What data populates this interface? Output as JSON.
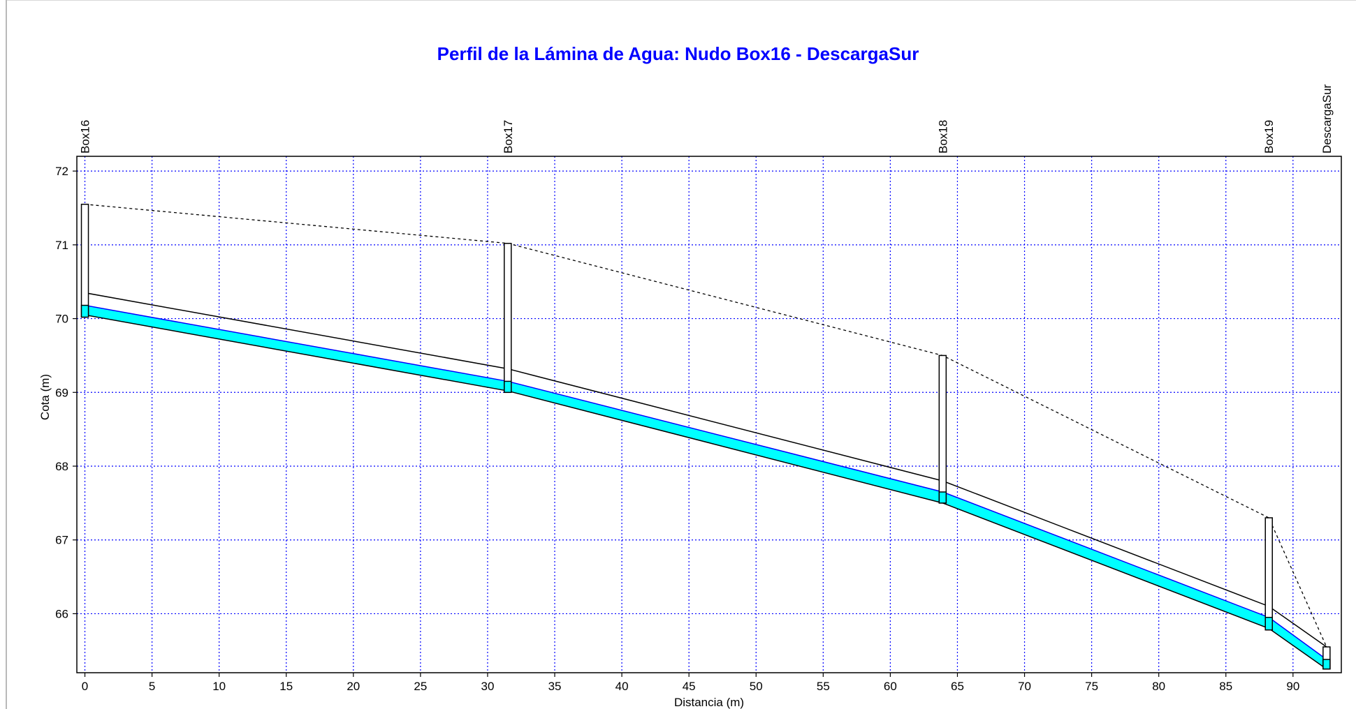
{
  "chart_data": {
    "type": "line",
    "title": "Perfil de la Lámina de Agua:  Nudo Box16 - DescargaSur",
    "xlabel": "Distancia (m)",
    "ylabel": "Cota (m)",
    "xlim": [
      -0.6,
      93.6
    ],
    "ylim": [
      65.2,
      72.2
    ],
    "xticks": [
      "0",
      "5",
      "10",
      "15",
      "20",
      "25",
      "30",
      "35",
      "40",
      "45",
      "50",
      "55",
      "60",
      "65",
      "70",
      "75",
      "80",
      "85",
      "90"
    ],
    "yticks": [
      "72",
      "71",
      "70",
      "69",
      "68",
      "67",
      "66"
    ],
    "grid": true,
    "nodes": [
      {
        "name": "Box16",
        "x": 0.0,
        "invert": 70.02,
        "rim": 71.55
      },
      {
        "name": "Box17",
        "x": 31.5,
        "invert": 69.0,
        "rim": 71.02
      },
      {
        "name": "Box18",
        "x": 63.9,
        "invert": 67.5,
        "rim": 69.5
      },
      {
        "name": "Box19",
        "x": 88.2,
        "invert": 65.78,
        "rim": 67.3
      },
      {
        "name": "DescargaSur",
        "x": 92.5,
        "invert": 65.25,
        "rim": 65.55
      }
    ],
    "series": [
      {
        "name": "",
        "values": [
          {
            "x": 0.0,
            "y": 70.05
          },
          {
            "x": 31.5,
            "y": 69.02
          },
          {
            "x": 63.9,
            "y": 67.5
          },
          {
            "x": 88.2,
            "y": 65.8
          },
          {
            "x": 92.5,
            "y": 65.25
          }
        ]
      },
      {
        "name": "",
        "values": [
          {
            "x": 0.0,
            "y": 70.18
          },
          {
            "x": 31.5,
            "y": 69.15
          },
          {
            "x": 63.9,
            "y": 67.65
          },
          {
            "x": 88.2,
            "y": 65.95
          },
          {
            "x": 92.5,
            "y": 65.38
          }
        ]
      },
      {
        "name": "",
        "values": [
          {
            "x": 0.0,
            "y": 70.35
          },
          {
            "x": 31.5,
            "y": 69.32
          },
          {
            "x": 63.9,
            "y": 67.8
          },
          {
            "x": 88.2,
            "y": 66.1
          },
          {
            "x": 92.5,
            "y": 65.55
          }
        ]
      },
      {
        "name": "",
        "values": [
          {
            "x": 0.0,
            "y": 71.55
          },
          {
            "x": 31.5,
            "y": 71.02
          },
          {
            "x": 63.9,
            "y": 69.5
          },
          {
            "x": 88.2,
            "y": 67.3
          },
          {
            "x": 92.5,
            "y": 65.55
          }
        ]
      }
    ]
  },
  "colors": {
    "title": "#0000ff",
    "grid": "#0000ff",
    "water": "#00ffff",
    "outline": "#000000"
  }
}
